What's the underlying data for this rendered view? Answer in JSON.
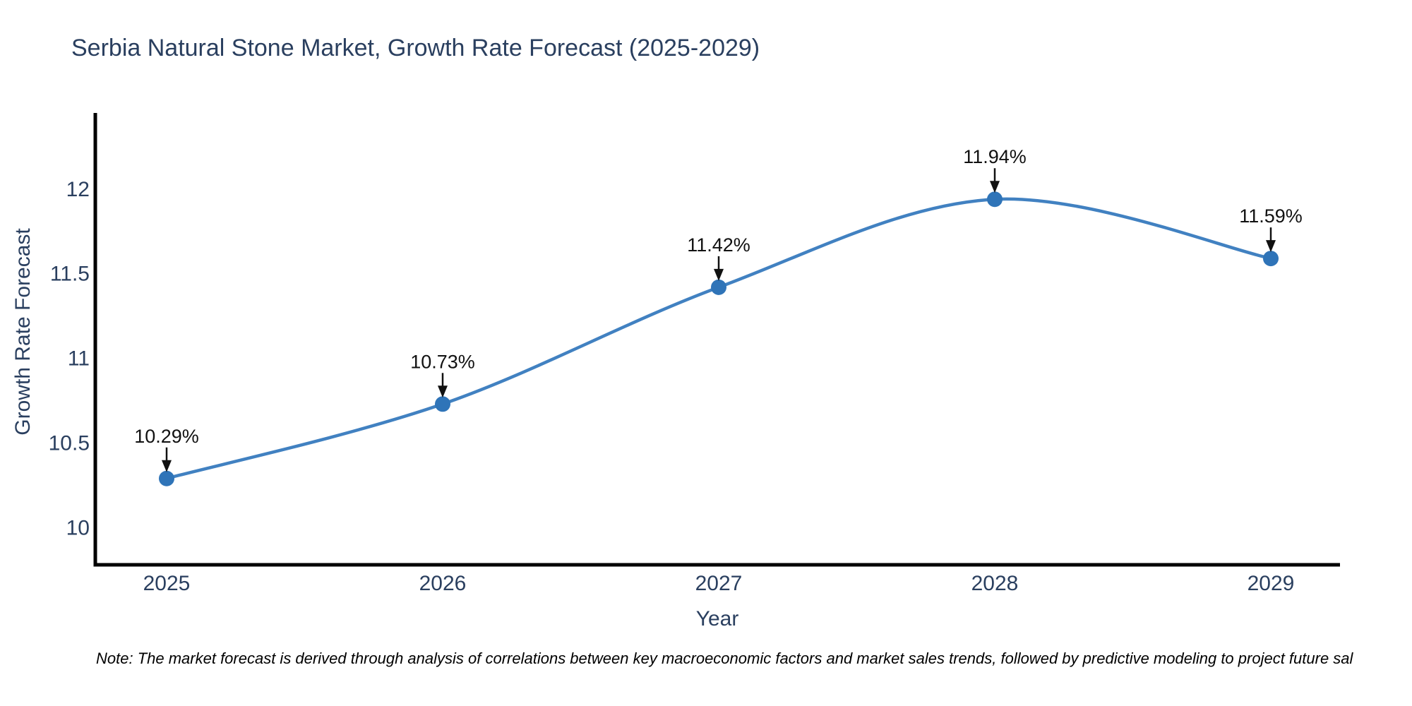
{
  "title": "Serbia Natural Stone Market, Growth Rate Forecast (2025-2029)",
  "note": "Note: The market forecast is derived through analysis of correlations between key macroeconomic factors and market sales trends, followed by predictive modeling to project future sal",
  "chart_data": {
    "type": "line",
    "title": "Serbia Natural Stone Market, Growth Rate Forecast (2025-2029)",
    "xlabel": "Year",
    "ylabel": "Growth Rate Forecast",
    "categories": [
      "2025",
      "2026",
      "2027",
      "2028",
      "2029"
    ],
    "values": [
      10.29,
      10.73,
      11.42,
      11.94,
      11.59
    ],
    "point_labels": [
      "10.29%",
      "10.73%",
      "11.42%",
      "11.94%",
      "11.59%"
    ],
    "line_shape": "spline",
    "markers": true,
    "grid": false,
    "legend": "none",
    "ylim": [
      9.78,
      12.45
    ],
    "yticks": [
      10,
      10.5,
      11,
      11.5,
      12
    ],
    "ytick_labels": [
      "10",
      "10.5",
      "11",
      "11.5",
      "12"
    ],
    "colors": {
      "line": "#4181c1",
      "marker": "#2f74b8",
      "axis": "#000000",
      "tick_text": "#2a3f5f",
      "annotation_text": "#111111"
    }
  }
}
